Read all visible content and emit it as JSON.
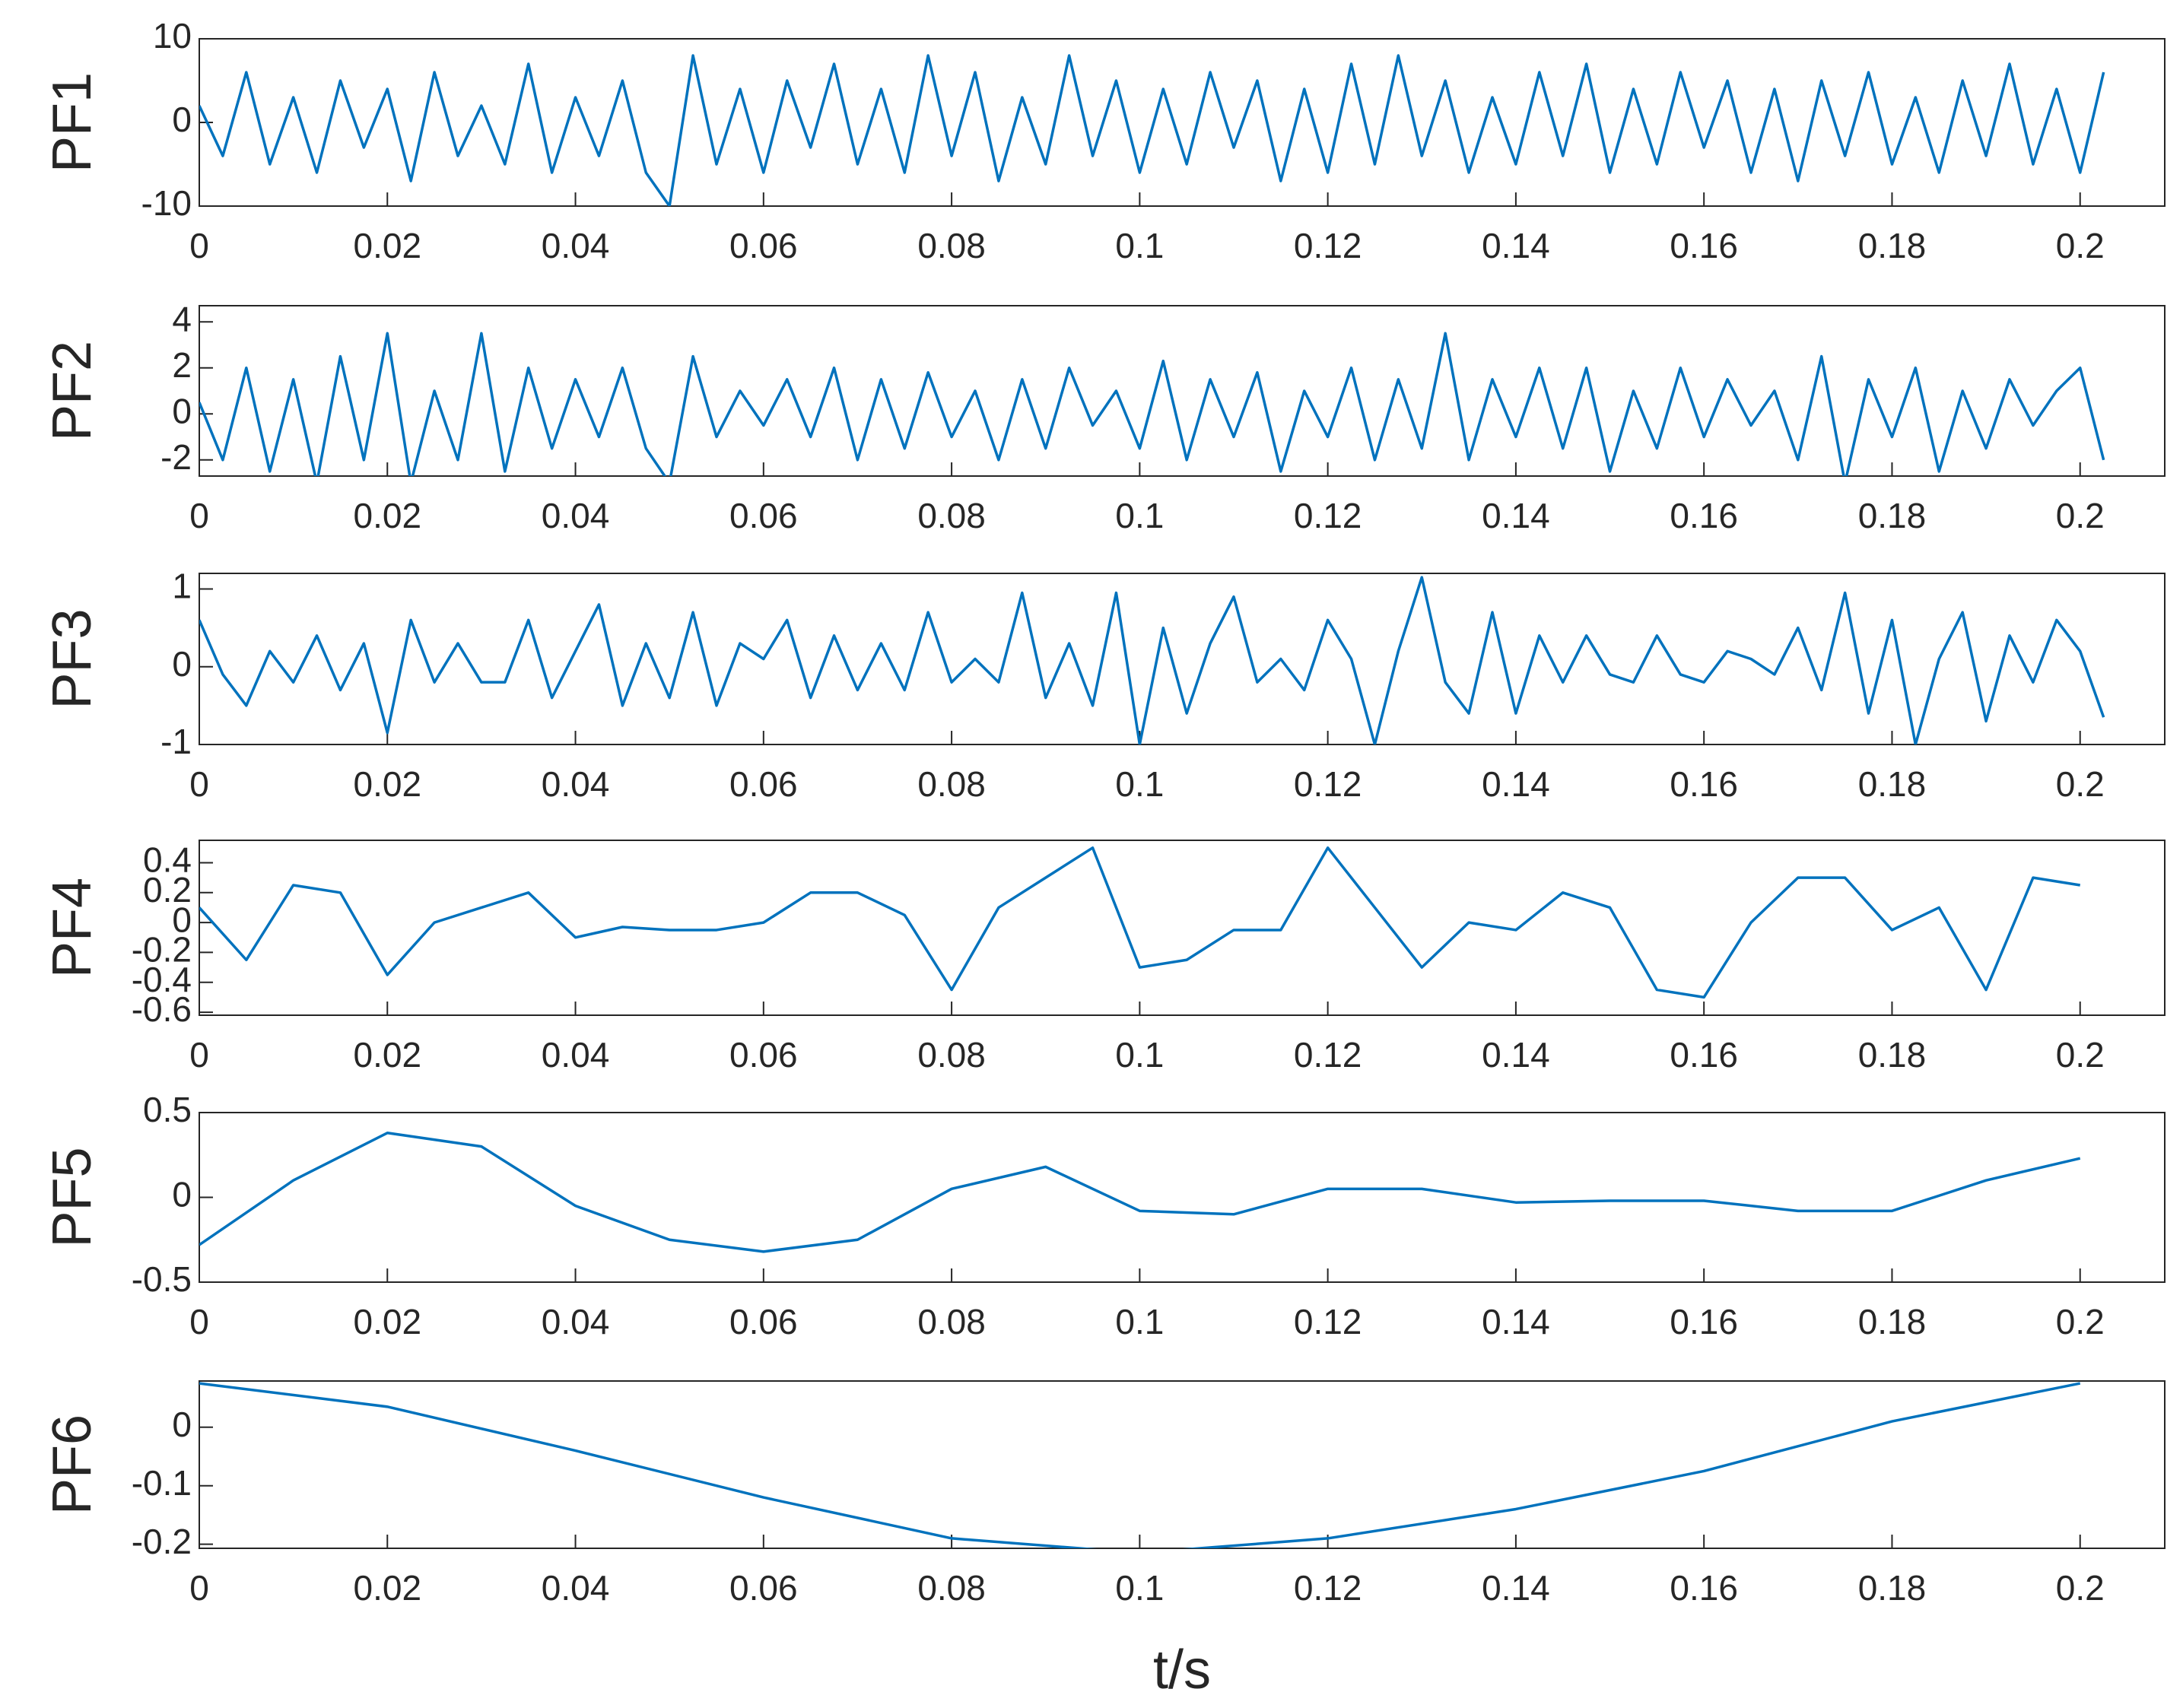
{
  "chart_data": [
    {
      "type": "line",
      "ylabel": "PF1",
      "color": "#0072bd",
      "xlim": [
        0,
        0.209
      ],
      "xticks": [
        0,
        0.02,
        0.04,
        0.06,
        0.08,
        0.1,
        0.12,
        0.14,
        0.16,
        0.18,
        0.2
      ],
      "ylim": [
        -10,
        10
      ],
      "yticks": [
        -10,
        0,
        10
      ],
      "x": [
        0,
        0.0025,
        0.005,
        0.0075,
        0.01,
        0.0125,
        0.015,
        0.0175,
        0.02,
        0.0225,
        0.025,
        0.0275,
        0.03,
        0.0325,
        0.035,
        0.0375,
        0.04,
        0.0425,
        0.045,
        0.0475,
        0.05,
        0.0525,
        0.055,
        0.0575,
        0.06,
        0.0625,
        0.065,
        0.0675,
        0.07,
        0.0725,
        0.075,
        0.0775,
        0.08,
        0.0825,
        0.085,
        0.0875,
        0.09,
        0.0925,
        0.095,
        0.0975,
        0.1,
        0.1025,
        0.105,
        0.1075,
        0.11,
        0.1125,
        0.115,
        0.1175,
        0.12,
        0.1225,
        0.125,
        0.1275,
        0.13,
        0.1325,
        0.135,
        0.1375,
        0.14,
        0.1425,
        0.145,
        0.1475,
        0.15,
        0.1525,
        0.155,
        0.1575,
        0.16,
        0.1625,
        0.165,
        0.1675,
        0.17,
        0.1725,
        0.175,
        0.1775,
        0.18,
        0.1825,
        0.185,
        0.1875,
        0.19,
        0.1925,
        0.195,
        0.1975,
        0.2,
        0.2025
      ],
      "values": [
        2,
        -4,
        6,
        -5,
        3,
        -6,
        5,
        -3,
        4,
        -7,
        6,
        -4,
        2,
        -5,
        7,
        -6,
        3,
        -4,
        5,
        -6,
        -10,
        8,
        -5,
        4,
        -6,
        5,
        -3,
        7,
        -5,
        4,
        -6,
        8,
        -4,
        6,
        -7,
        3,
        -5,
        8,
        -4,
        5,
        -6,
        4,
        -5,
        6,
        -3,
        5,
        -7,
        4,
        -6,
        7,
        -5,
        8,
        -4,
        5,
        -6,
        3,
        -5,
        6,
        -4,
        7,
        -6,
        4,
        -5,
        6,
        -3,
        5,
        -6,
        4,
        -7,
        5,
        -4,
        6,
        -5,
        3,
        -6,
        5,
        -4,
        7,
        -5,
        4,
        -6,
        6
      ]
    },
    {
      "type": "line",
      "ylabel": "PF2",
      "color": "#0072bd",
      "xlim": [
        0,
        0.209
      ],
      "xticks": [
        0,
        0.02,
        0.04,
        0.06,
        0.08,
        0.1,
        0.12,
        0.14,
        0.16,
        0.18,
        0.2
      ],
      "ylim": [
        -2.7,
        4.7
      ],
      "yticks": [
        -2,
        0,
        2,
        4
      ],
      "x": [
        0,
        0.0025,
        0.005,
        0.0075,
        0.01,
        0.0125,
        0.015,
        0.0175,
        0.02,
        0.0225,
        0.025,
        0.0275,
        0.03,
        0.0325,
        0.035,
        0.0375,
        0.04,
        0.0425,
        0.045,
        0.0475,
        0.05,
        0.0525,
        0.055,
        0.0575,
        0.06,
        0.0625,
        0.065,
        0.0675,
        0.07,
        0.0725,
        0.075,
        0.0775,
        0.08,
        0.0825,
        0.085,
        0.0875,
        0.09,
        0.0925,
        0.095,
        0.0975,
        0.1,
        0.1025,
        0.105,
        0.1075,
        0.11,
        0.1125,
        0.115,
        0.1175,
        0.12,
        0.1225,
        0.125,
        0.1275,
        0.13,
        0.1325,
        0.135,
        0.1375,
        0.14,
        0.1425,
        0.145,
        0.1475,
        0.15,
        0.1525,
        0.155,
        0.1575,
        0.16,
        0.1625,
        0.165,
        0.1675,
        0.17,
        0.1725,
        0.175,
        0.1775,
        0.18,
        0.1825,
        0.185,
        0.1875,
        0.19,
        0.1925,
        0.195,
        0.1975,
        0.2,
        0.2025
      ],
      "values": [
        0.5,
        -2,
        2,
        -2.5,
        1.5,
        -3,
        2.5,
        -2,
        3.5,
        -3,
        1,
        -2,
        3.5,
        -2.5,
        2,
        -1.5,
        1.5,
        -1,
        2,
        -1.5,
        -3,
        2.5,
        -1,
        1,
        -0.5,
        1.5,
        -1,
        2,
        -2,
        1.5,
        -1.5,
        1.8,
        -1,
        1,
        -2,
        1.5,
        -1.5,
        2,
        -0.5,
        1,
        -1.5,
        2.3,
        -2,
        1.5,
        -1,
        1.8,
        -2.5,
        1,
        -1,
        2,
        -2,
        1.5,
        -1.5,
        3.5,
        -2,
        1.5,
        -1,
        2,
        -1.5,
        2,
        -2.5,
        1,
        -1.5,
        2,
        -1,
        1.5,
        -0.5,
        1,
        -2,
        2.5,
        -3,
        1.5,
        -1,
        2,
        -2.5,
        1,
        -1.5,
        1.5,
        -0.5,
        1,
        2,
        -2
      ]
    },
    {
      "type": "line",
      "ylabel": "PF3",
      "color": "#0072bd",
      "xlim": [
        0,
        0.209
      ],
      "xticks": [
        0,
        0.02,
        0.04,
        0.06,
        0.08,
        0.1,
        0.12,
        0.14,
        0.16,
        0.18,
        0.2
      ],
      "ylim": [
        -1,
        1.2
      ],
      "yticks": [
        -1,
        0,
        1
      ],
      "x": [
        0,
        0.0025,
        0.005,
        0.0075,
        0.01,
        0.0125,
        0.015,
        0.0175,
        0.02,
        0.0225,
        0.025,
        0.0275,
        0.03,
        0.0325,
        0.035,
        0.0375,
        0.04,
        0.0425,
        0.045,
        0.0475,
        0.05,
        0.0525,
        0.055,
        0.0575,
        0.06,
        0.0625,
        0.065,
        0.0675,
        0.07,
        0.0725,
        0.075,
        0.0775,
        0.08,
        0.0825,
        0.085,
        0.0875,
        0.09,
        0.0925,
        0.095,
        0.0975,
        0.1,
        0.1025,
        0.105,
        0.1075,
        0.11,
        0.1125,
        0.115,
        0.1175,
        0.12,
        0.1225,
        0.125,
        0.1275,
        0.13,
        0.1325,
        0.135,
        0.1375,
        0.14,
        0.1425,
        0.145,
        0.1475,
        0.15,
        0.1525,
        0.155,
        0.1575,
        0.16,
        0.1625,
        0.165,
        0.1675,
        0.17,
        0.1725,
        0.175,
        0.1775,
        0.18,
        0.1825,
        0.185,
        0.1875,
        0.19,
        0.1925,
        0.195,
        0.1975,
        0.2,
        0.2025
      ],
      "values": [
        0.6,
        -0.1,
        -0.5,
        0.2,
        -0.2,
        0.4,
        -0.3,
        0.3,
        -0.85,
        0.6,
        -0.2,
        0.3,
        -0.2,
        -0.2,
        0.6,
        -0.4,
        0.2,
        0.8,
        -0.5,
        0.3,
        -0.4,
        0.7,
        -0.5,
        0.3,
        0.1,
        0.6,
        -0.4,
        0.4,
        -0.3,
        0.3,
        -0.3,
        0.7,
        -0.2,
        0.1,
        -0.2,
        0.95,
        -0.4,
        0.3,
        -0.5,
        0.95,
        -1,
        0.5,
        -0.6,
        0.3,
        0.9,
        -0.2,
        0.1,
        -0.3,
        0.6,
        0.1,
        -1,
        0.2,
        1.15,
        -0.2,
        -0.6,
        0.7,
        -0.6,
        0.4,
        -0.2,
        0.4,
        -0.1,
        -0.2,
        0.4,
        -0.1,
        -0.2,
        0.2,
        0.1,
        -0.1,
        0.5,
        -0.3,
        0.95,
        -0.6,
        0.6,
        -1,
        0.1,
        0.7,
        -0.7,
        0.4,
        -0.2,
        0.6,
        0.2,
        -0.65
      ]
    },
    {
      "type": "line",
      "ylabel": "PF4",
      "color": "#0072bd",
      "xlim": [
        0,
        0.209
      ],
      "xticks": [
        0,
        0.02,
        0.04,
        0.06,
        0.08,
        0.1,
        0.12,
        0.14,
        0.16,
        0.18,
        0.2
      ],
      "ylim": [
        -0.62,
        0.55
      ],
      "yticks": [
        -0.6,
        -0.4,
        -0.2,
        0,
        0.2,
        0.4
      ],
      "x": [
        0,
        0.005,
        0.01,
        0.015,
        0.02,
        0.025,
        0.03,
        0.035,
        0.04,
        0.045,
        0.05,
        0.055,
        0.06,
        0.065,
        0.07,
        0.075,
        0.08,
        0.085,
        0.09,
        0.095,
        0.1,
        0.105,
        0.11,
        0.115,
        0.12,
        0.125,
        0.13,
        0.135,
        0.14,
        0.145,
        0.15,
        0.155,
        0.16,
        0.165,
        0.17,
        0.175,
        0.18,
        0.185,
        0.19,
        0.195,
        0.2
      ],
      "values": [
        0.1,
        -0.25,
        0.25,
        0.2,
        -0.35,
        0,
        0.1,
        0.2,
        -0.1,
        -0.03,
        -0.05,
        -0.05,
        0,
        0.2,
        0.2,
        0.05,
        -0.45,
        0.1,
        0.3,
        0.5,
        -0.3,
        -0.25,
        -0.05,
        -0.05,
        0.5,
        0.1,
        -0.3,
        0,
        -0.05,
        0.2,
        0.1,
        -0.45,
        -0.5,
        0,
        0.3,
        0.3,
        -0.05,
        0.1,
        -0.45,
        0.3,
        0.25
      ]
    },
    {
      "type": "line",
      "ylabel": "PF5",
      "color": "#0072bd",
      "xlim": [
        0,
        0.209
      ],
      "xticks": [
        0,
        0.02,
        0.04,
        0.06,
        0.08,
        0.1,
        0.12,
        0.14,
        0.16,
        0.18,
        0.2
      ],
      "ylim": [
        -0.5,
        0.5
      ],
      "yticks": [
        -0.5,
        0,
        0.5
      ],
      "x": [
        0,
        0.01,
        0.02,
        0.03,
        0.04,
        0.05,
        0.06,
        0.07,
        0.08,
        0.09,
        0.1,
        0.11,
        0.12,
        0.13,
        0.14,
        0.15,
        0.16,
        0.17,
        0.18,
        0.19,
        0.2
      ],
      "values": [
        -0.28,
        0.1,
        0.38,
        0.3,
        -0.05,
        -0.25,
        -0.32,
        -0.25,
        0.05,
        0.18,
        -0.08,
        -0.1,
        0.05,
        0.05,
        -0.03,
        -0.02,
        -0.02,
        -0.08,
        -0.08,
        0.1,
        0.23
      ]
    },
    {
      "type": "line",
      "ylabel": "PF6",
      "xlabel": "t/s",
      "color": "#0072bd",
      "xlim": [
        0,
        0.209
      ],
      "xticks": [
        0,
        0.02,
        0.04,
        0.06,
        0.08,
        0.1,
        0.12,
        0.14,
        0.16,
        0.18,
        0.2
      ],
      "ylim": [
        -0.207,
        0.079
      ],
      "yticks": [
        -0.2,
        -0.1,
        0
      ],
      "x": [
        0,
        0.02,
        0.04,
        0.06,
        0.08,
        0.1,
        0.12,
        0.14,
        0.16,
        0.18,
        0.2
      ],
      "values": [
        0.075,
        0.035,
        -0.04,
        -0.12,
        -0.19,
        -0.215,
        -0.19,
        -0.14,
        -0.075,
        0.01,
        0.075
      ]
    }
  ]
}
